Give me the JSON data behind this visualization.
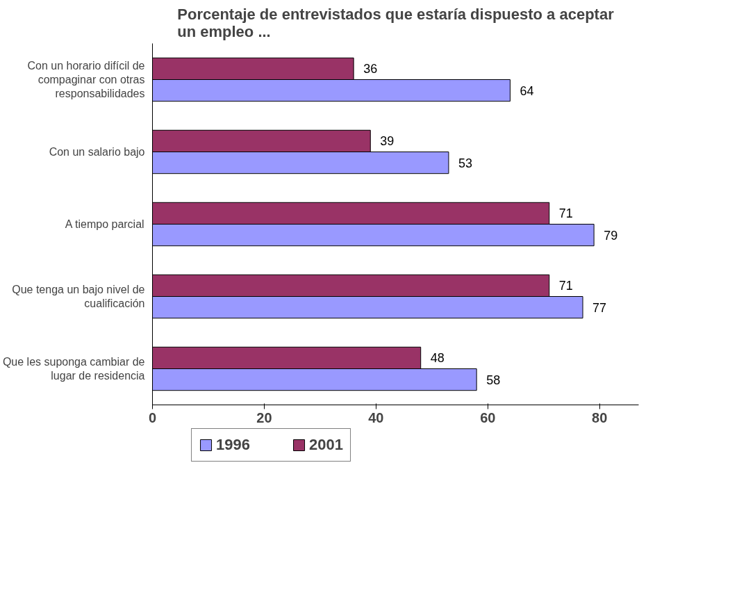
{
  "chart_data": {
    "type": "bar",
    "orientation": "horizontal",
    "title": "Porcentaje de entrevistados que estaría dispuesto a aceptar un empleo ...",
    "categories": [
      "Con un horario difícil de compaginar con otras responsabilidades",
      "Con un salario bajo",
      "A tiempo parcial",
      "Que tenga un bajo nivel de cualificación",
      "Que les suponga cambiar de lugar de residencia"
    ],
    "series": [
      {
        "name": "1996",
        "color": "#9999ff",
        "values": [
          64,
          53,
          79,
          77,
          58
        ]
      },
      {
        "name": "2001",
        "color": "#993366",
        "values": [
          36,
          39,
          71,
          71,
          48
        ]
      }
    ],
    "xlim": [
      0,
      87
    ],
    "xticks": [
      0,
      20,
      40,
      60,
      80
    ],
    "data_labels": true,
    "grid": false,
    "legend": "bottom"
  }
}
